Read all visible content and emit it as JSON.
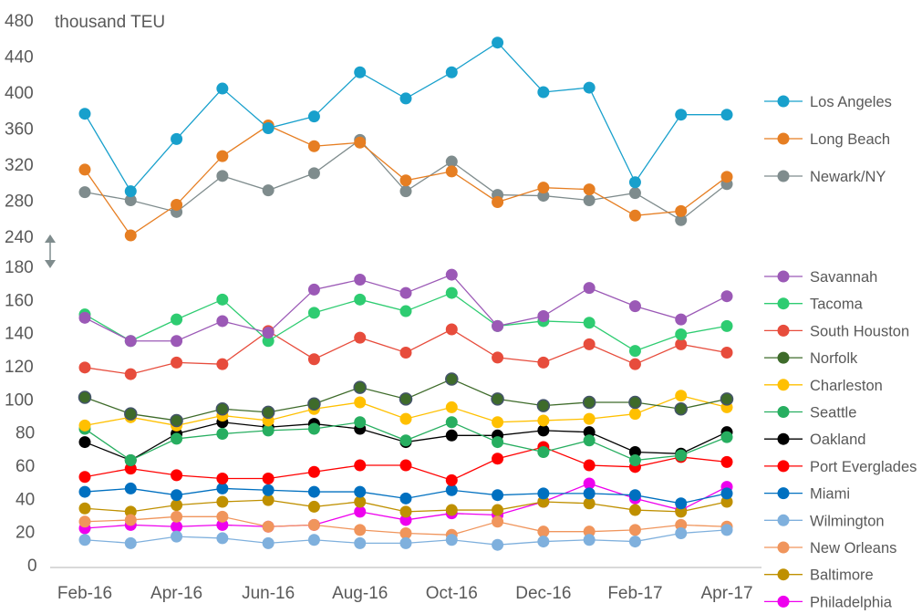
{
  "chart_data": {
    "type": "line",
    "title": "",
    "ylabel": "thousand TEU",
    "x": [
      "Feb-16",
      "Mar-16",
      "Apr-16",
      "May-16",
      "Jun-16",
      "Jul-16",
      "Aug-16",
      "Sep-16",
      "Oct-16",
      "Nov-16",
      "Dec-16",
      "Jan-17",
      "Feb-17",
      "Mar-17",
      "Apr-17"
    ],
    "x_tick_labels": [
      "Feb-16",
      "Apr-16",
      "Jun-16",
      "Aug-16",
      "Oct-16",
      "Dec-16",
      "Feb-17",
      "Apr-17"
    ],
    "upper_axis": {
      "ylim": [
        240,
        480
      ],
      "ticks": [
        240,
        280,
        320,
        360,
        400,
        440,
        480
      ]
    },
    "lower_axis": {
      "ylim": [
        0,
        180
      ],
      "ticks": [
        0,
        20,
        40,
        60,
        80,
        100,
        120,
        140,
        160,
        180
      ]
    },
    "axis_break": true,
    "upper_series": [
      {
        "name": "Los Angeles",
        "color": "#18a0cc",
        "values": [
          376,
          290,
          348,
          404,
          360,
          373,
          422,
          393,
          422,
          455,
          400,
          405,
          300,
          375,
          375
        ]
      },
      {
        "name": "Long Beach",
        "color": "#e67e22",
        "values": [
          314,
          241,
          275,
          329,
          363,
          340,
          344,
          302,
          312,
          278,
          294,
          292,
          263,
          268,
          306
        ]
      },
      {
        "name": "Newark/NY",
        "color": "#7f8c8d",
        "values": [
          289,
          280,
          267,
          307,
          291,
          310,
          347,
          290,
          323,
          286,
          285,
          280,
          288,
          258,
          298
        ]
      }
    ],
    "lower_series": [
      {
        "name": "Savannah",
        "color": "#9b59b6",
        "values": [
          149,
          135,
          135,
          147,
          140,
          166,
          172,
          164,
          175,
          144,
          150,
          167,
          156,
          148,
          162
        ]
      },
      {
        "name": "Tacoma",
        "color": "#2ecc71",
        "values": [
          151,
          135,
          148,
          160,
          135,
          152,
          160,
          153,
          164,
          144,
          147,
          146,
          129,
          139,
          144
        ]
      },
      {
        "name": "South Houston",
        "color": "#e74c3c",
        "values": [
          119,
          115,
          122,
          121,
          141,
          124,
          137,
          128,
          142,
          125,
          122,
          133,
          121,
          133,
          128
        ]
      },
      {
        "name": "Norfolk",
        "color": "#3e6b2a",
        "values": [
          101,
          91,
          87,
          94,
          92,
          97,
          107,
          100,
          112,
          100,
          96,
          98,
          98,
          94,
          100
        ]
      },
      {
        "name": "Charleston",
        "color": "#ffc000",
        "values": [
          84,
          89,
          84,
          90,
          87,
          94,
          98,
          88,
          95,
          86,
          87,
          88,
          91,
          102,
          95
        ]
      },
      {
        "name": "Seattle",
        "color": "#27ae60",
        "values": [
          82,
          63,
          76,
          79,
          81,
          82,
          86,
          75,
          86,
          74,
          68,
          75,
          63,
          66,
          77
        ]
      },
      {
        "name": "Oakland",
        "color": "#000000",
        "values": [
          74,
          63,
          79,
          86,
          83,
          85,
          82,
          74,
          78,
          78,
          81,
          80,
          68,
          67,
          80
        ]
      },
      {
        "name": "Port Everglades",
        "color": "#ff0000",
        "values": [
          53,
          58,
          54,
          52,
          52,
          56,
          60,
          60,
          51,
          64,
          71,
          60,
          59,
          65,
          62
        ]
      },
      {
        "name": "Miami",
        "color": "#0070c0",
        "values": [
          44,
          46,
          42,
          46,
          45,
          44,
          44,
          40,
          45,
          42,
          43,
          43,
          42,
          37,
          43
        ]
      },
      {
        "name": "Wilmington",
        "color": "#7fb0dd",
        "values": [
          15,
          13,
          17,
          16,
          13,
          15,
          13,
          13,
          15,
          12,
          14,
          15,
          14,
          19,
          21
        ]
      },
      {
        "name": "New Orleans",
        "color": "#f0955c",
        "values": [
          26,
          27,
          29,
          29,
          23,
          24,
          21,
          19,
          18,
          26,
          20,
          20,
          21,
          24,
          23
        ]
      },
      {
        "name": "Baltimore",
        "color": "#bf9000",
        "values": [
          34,
          32,
          36,
          38,
          39,
          35,
          38,
          32,
          33,
          33,
          38,
          37,
          33,
          32,
          38
        ]
      },
      {
        "name": "Philadelphia",
        "color": "#ee00ee",
        "values": [
          22,
          24,
          23,
          24,
          23,
          24,
          32,
          27,
          31,
          30,
          38,
          49,
          40,
          33,
          47
        ]
      }
    ],
    "legend_placement": "right"
  }
}
